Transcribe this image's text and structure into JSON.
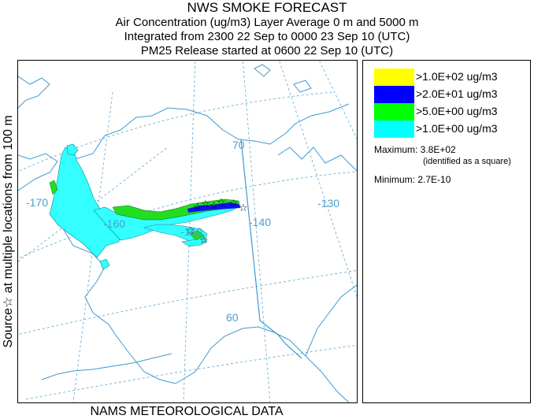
{
  "title": {
    "line1": "NWS SMOKE FORECAST",
    "line2": "Air Concentration (ug/m3) Layer Average    0 m and  5000 m",
    "line3": "Integrated from 2300 22 Sep to 0000 23 Sep 10 (UTC)",
    "line4": "PM25 Release started at 0600 22 Sep 10 (UTC)"
  },
  "side_label": "Source☆  at multiple locations  from  100 m",
  "bottom_label": "NAMS METEOROLOGICAL DATA",
  "map": {
    "graticule_labels": {
      "lon_m170": "-170",
      "lon_m160": "-160",
      "lon_m150": "-150",
      "lon_m140": "-140",
      "lon_m130": "-130",
      "lat_70": "70",
      "lat_60": "60"
    },
    "colors": {
      "coast": "#3d9ad0",
      "graticule": "#6ab0d4",
      "cyan": "#33ffff",
      "green": "#22dd22",
      "blue": "#1111ee",
      "yellow": "#ffff00"
    }
  },
  "legend": {
    "items": [
      {
        "label": ">1.0E+02 ug/m3",
        "color": "#ffff00"
      },
      {
        "label": ">2.0E+01 ug/m3",
        "color": "#0000ff"
      },
      {
        "label": ">5.0E+00 ug/m3",
        "color": "#00ff00"
      },
      {
        "label": ">1.0E+00 ug/m3",
        "color": "#00ffff"
      }
    ],
    "maximum": "Maximum: 3.8E+02",
    "maximum_note": "(identified as a square)",
    "minimum": "Minimum: 2.7E-10"
  }
}
